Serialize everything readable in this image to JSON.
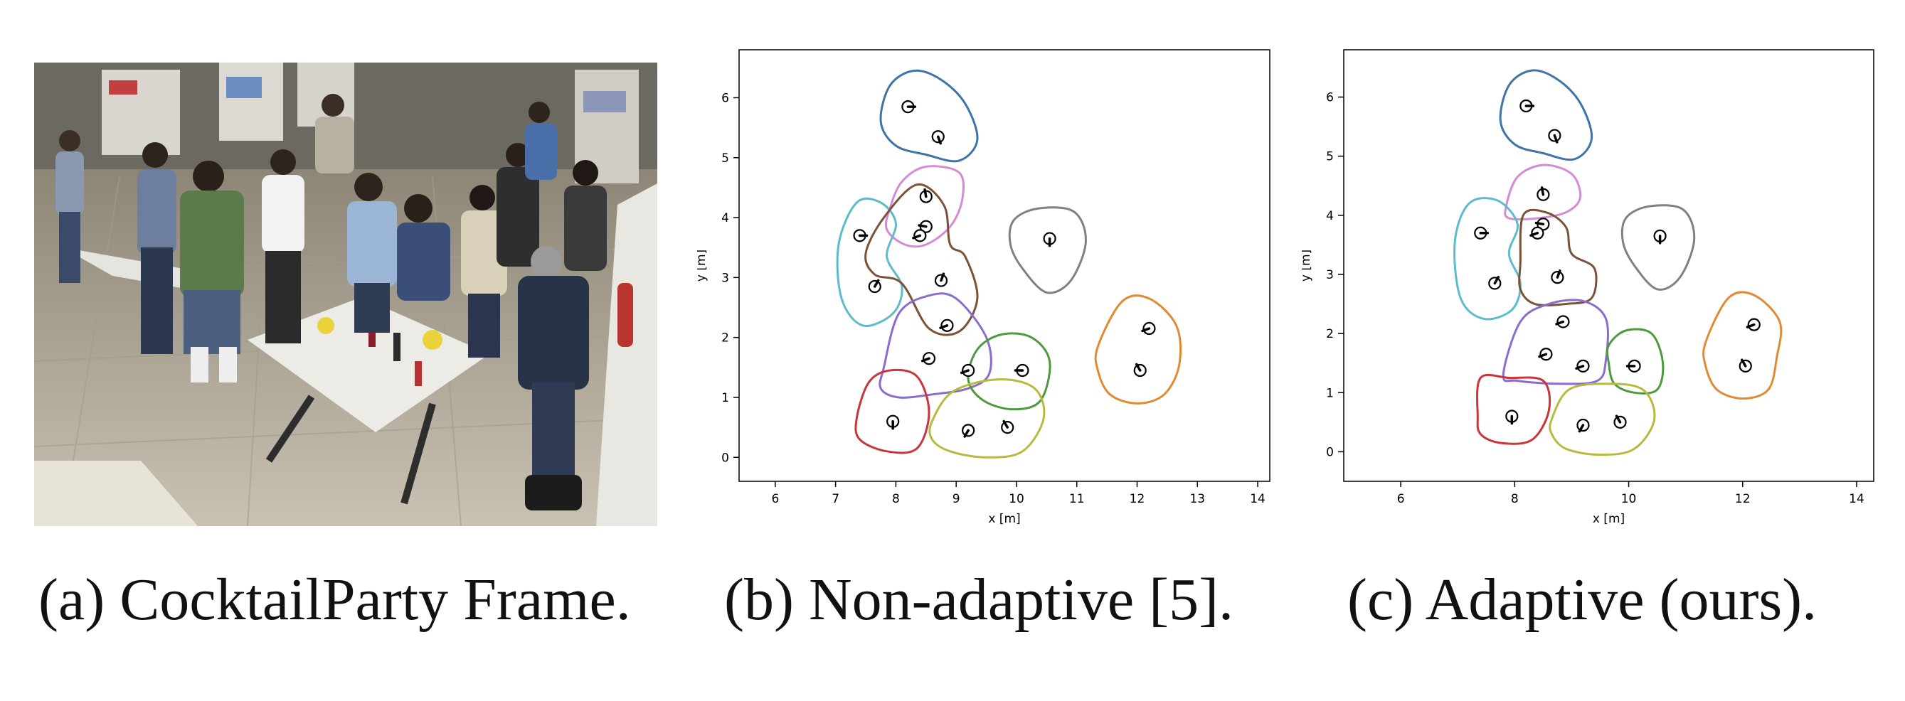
{
  "captions": {
    "a": "(a) CocktailParty Frame.",
    "b": "(b) Non-adaptive [5].",
    "c": "(c) Adaptive (ours)."
  },
  "photo": {
    "description_icon": "cocktail-party-photo"
  },
  "chart_data": [
    {
      "type": "scatter",
      "panel": "b",
      "xlabel": "x [m]",
      "ylabel": "y [m]",
      "xlim": [
        5.4,
        14.2
      ],
      "ylim": [
        -0.4,
        6.8
      ],
      "xticks": [
        6,
        7,
        8,
        9,
        10,
        11,
        12,
        13,
        14
      ],
      "yticks": [
        0,
        1,
        2,
        3,
        4,
        5,
        6
      ],
      "grid": false,
      "people": [
        {
          "x": 8.2,
          "y": 5.85,
          "dir": 0
        },
        {
          "x": 8.7,
          "y": 5.35,
          "dir": -70
        },
        {
          "x": 8.5,
          "y": 4.35,
          "dir": 100
        },
        {
          "x": 7.4,
          "y": 3.7,
          "dir": 0
        },
        {
          "x": 8.5,
          "y": 3.85,
          "dir": 170
        },
        {
          "x": 8.4,
          "y": 3.7,
          "dir": 200
        },
        {
          "x": 7.65,
          "y": 2.85,
          "dir": 60
        },
        {
          "x": 8.75,
          "y": 2.95,
          "dir": 70
        },
        {
          "x": 10.55,
          "y": 3.65,
          "dir": -90
        },
        {
          "x": 8.85,
          "y": 2.2,
          "dir": 200
        },
        {
          "x": 8.55,
          "y": 1.65,
          "dir": 200
        },
        {
          "x": 9.2,
          "y": 1.45,
          "dir": 200
        },
        {
          "x": 10.1,
          "y": 1.45,
          "dir": 180
        },
        {
          "x": 12.2,
          "y": 2.15,
          "dir": 200
        },
        {
          "x": 12.05,
          "y": 1.45,
          "dir": 120
        },
        {
          "x": 7.95,
          "y": 0.6,
          "dir": -90
        },
        {
          "x": 9.2,
          "y": 0.45,
          "dir": 240
        },
        {
          "x": 9.85,
          "y": 0.5,
          "dir": 120
        }
      ],
      "groups": [
        {
          "color": "#3f73a6",
          "outline": [
            [
              7.75,
              5.6
            ],
            [
              7.9,
              6.2
            ],
            [
              8.3,
              6.45
            ],
            [
              8.75,
              6.3
            ],
            [
              9.15,
              5.9
            ],
            [
              9.35,
              5.3
            ],
            [
              9.05,
              4.95
            ],
            [
              8.5,
              5.05
            ],
            [
              8.0,
              5.2
            ]
          ]
        },
        {
          "color": "#d48ad4",
          "outline": [
            [
              7.9,
              4.15
            ],
            [
              8.1,
              4.6
            ],
            [
              8.5,
              4.85
            ],
            [
              9.05,
              4.75
            ],
            [
              9.1,
              4.3
            ],
            [
              8.9,
              3.85
            ],
            [
              8.5,
              3.55
            ],
            [
              8.15,
              3.55
            ],
            [
              7.85,
              3.8
            ]
          ]
        },
        {
          "color": "#5cbcc9",
          "outline": [
            [
              7.05,
              3.55
            ],
            [
              7.35,
              4.25
            ],
            [
              7.75,
              4.25
            ],
            [
              8.0,
              3.9
            ],
            [
              7.85,
              3.35
            ],
            [
              8.1,
              2.85
            ],
            [
              7.95,
              2.4
            ],
            [
              7.45,
              2.2
            ],
            [
              7.1,
              2.65
            ]
          ]
        },
        {
          "color": "#7a5238",
          "outline": [
            [
              7.5,
              3.4
            ],
            [
              7.8,
              4.0
            ],
            [
              8.35,
              4.55
            ],
            [
              8.8,
              4.2
            ],
            [
              8.9,
              3.55
            ],
            [
              9.15,
              3.35
            ],
            [
              9.35,
              2.65
            ],
            [
              9.05,
              2.1
            ],
            [
              8.55,
              2.15
            ],
            [
              8.1,
              2.9
            ],
            [
              7.65,
              3.05
            ]
          ]
        },
        {
          "color": "#808080",
          "outline": [
            [
              9.95,
              3.95
            ],
            [
              10.35,
              4.15
            ],
            [
              10.95,
              4.1
            ],
            [
              11.15,
              3.6
            ],
            [
              10.9,
              2.95
            ],
            [
              10.5,
              2.75
            ],
            [
              10.1,
              3.15
            ],
            [
              9.9,
              3.55
            ]
          ]
        },
        {
          "color": "#8a6ccf",
          "outline": [
            [
              7.8,
              1.5
            ],
            [
              8.05,
              2.4
            ],
            [
              8.55,
              2.7
            ],
            [
              9.0,
              2.65
            ],
            [
              9.5,
              2.0
            ],
            [
              9.55,
              1.4
            ],
            [
              9.2,
              1.15
            ],
            [
              8.6,
              1.05
            ],
            [
              8.05,
              1.0
            ],
            [
              7.75,
              1.15
            ]
          ]
        },
        {
          "color": "#4c9a3e",
          "outline": [
            [
              9.35,
              1.8
            ],
            [
              9.75,
              2.05
            ],
            [
              10.25,
              2.0
            ],
            [
              10.55,
              1.6
            ],
            [
              10.4,
              0.95
            ],
            [
              9.95,
              0.8
            ],
            [
              9.45,
              0.95
            ],
            [
              9.2,
              1.3
            ]
          ]
        },
        {
          "color": "#e08a33",
          "outline": [
            [
              11.35,
              1.85
            ],
            [
              11.75,
              2.6
            ],
            [
              12.2,
              2.65
            ],
            [
              12.65,
              2.2
            ],
            [
              12.7,
              1.55
            ],
            [
              12.45,
              1.05
            ],
            [
              12.0,
              0.9
            ],
            [
              11.55,
              1.05
            ],
            [
              11.35,
              1.45
            ]
          ]
        },
        {
          "color": "#c8353a",
          "outline": [
            [
              7.35,
              0.65
            ],
            [
              7.55,
              1.25
            ],
            [
              7.9,
              1.45
            ],
            [
              8.35,
              1.35
            ],
            [
              8.55,
              0.75
            ],
            [
              8.35,
              0.15
            ],
            [
              7.85,
              0.1
            ],
            [
              7.4,
              0.3
            ]
          ]
        },
        {
          "color": "#b7ba3c",
          "outline": [
            [
              8.6,
              0.6
            ],
            [
              8.95,
              1.1
            ],
            [
              9.7,
              1.3
            ],
            [
              10.3,
              1.15
            ],
            [
              10.45,
              0.65
            ],
            [
              10.1,
              0.1
            ],
            [
              9.5,
              0.0
            ],
            [
              8.9,
              0.1
            ],
            [
              8.6,
              0.3
            ]
          ]
        }
      ]
    },
    {
      "type": "scatter",
      "panel": "c",
      "xlabel": "x [m]",
      "ylabel": "y [m]",
      "xlim": [
        5.0,
        14.3
      ],
      "ylim": [
        -0.5,
        6.8
      ],
      "xticks": [
        6,
        8,
        10,
        12,
        14
      ],
      "yticks": [
        0,
        1,
        2,
        3,
        4,
        5,
        6
      ],
      "grid": false,
      "people": [
        {
          "x": 8.2,
          "y": 5.85,
          "dir": 0
        },
        {
          "x": 8.7,
          "y": 5.35,
          "dir": -70
        },
        {
          "x": 8.5,
          "y": 4.35,
          "dir": 100
        },
        {
          "x": 7.4,
          "y": 3.7,
          "dir": 0
        },
        {
          "x": 8.5,
          "y": 3.85,
          "dir": 170
        },
        {
          "x": 8.4,
          "y": 3.7,
          "dir": 200
        },
        {
          "x": 7.65,
          "y": 2.85,
          "dir": 60
        },
        {
          "x": 8.75,
          "y": 2.95,
          "dir": 70
        },
        {
          "x": 10.55,
          "y": 3.65,
          "dir": -90
        },
        {
          "x": 8.85,
          "y": 2.2,
          "dir": 200
        },
        {
          "x": 8.55,
          "y": 1.65,
          "dir": 200
        },
        {
          "x": 9.2,
          "y": 1.45,
          "dir": 200
        },
        {
          "x": 10.1,
          "y": 1.45,
          "dir": 180
        },
        {
          "x": 12.2,
          "y": 2.15,
          "dir": 200
        },
        {
          "x": 12.05,
          "y": 1.45,
          "dir": 120
        },
        {
          "x": 7.95,
          "y": 0.6,
          "dir": -90
        },
        {
          "x": 9.2,
          "y": 0.45,
          "dir": 240
        },
        {
          "x": 9.85,
          "y": 0.5,
          "dir": 120
        }
      ],
      "groups": [
        {
          "color": "#3f73a6",
          "outline": [
            [
              7.75,
              5.6
            ],
            [
              7.9,
              6.2
            ],
            [
              8.3,
              6.45
            ],
            [
              8.75,
              6.3
            ],
            [
              9.15,
              5.9
            ],
            [
              9.35,
              5.3
            ],
            [
              9.05,
              4.95
            ],
            [
              8.5,
              5.05
            ],
            [
              8.0,
              5.2
            ]
          ]
        },
        {
          "color": "#d48ad4",
          "outline": [
            [
              7.85,
              4.15
            ],
            [
              8.05,
              4.65
            ],
            [
              8.5,
              4.85
            ],
            [
              9.0,
              4.7
            ],
            [
              9.15,
              4.3
            ],
            [
              8.9,
              4.05
            ],
            [
              8.4,
              3.95
            ],
            [
              7.9,
              3.95
            ]
          ]
        },
        {
          "color": "#5cbcc9",
          "outline": [
            [
              6.95,
              3.55
            ],
            [
              7.2,
              4.2
            ],
            [
              7.7,
              4.25
            ],
            [
              8.05,
              3.85
            ],
            [
              7.9,
              3.35
            ],
            [
              8.1,
              2.85
            ],
            [
              7.95,
              2.4
            ],
            [
              7.45,
              2.25
            ],
            [
              7.05,
              2.6
            ]
          ]
        },
        {
          "color": "#7a5238",
          "outline": [
            [
              8.1,
              3.2
            ],
            [
              8.15,
              4.0
            ],
            [
              8.55,
              4.05
            ],
            [
              8.9,
              3.8
            ],
            [
              9.0,
              3.35
            ],
            [
              9.4,
              3.1
            ],
            [
              9.35,
              2.6
            ],
            [
              8.9,
              2.5
            ],
            [
              8.35,
              2.5
            ],
            [
              8.1,
              2.75
            ]
          ]
        },
        {
          "color": "#808080",
          "outline": [
            [
              9.95,
              3.95
            ],
            [
              10.35,
              4.15
            ],
            [
              10.95,
              4.1
            ],
            [
              11.15,
              3.6
            ],
            [
              10.9,
              2.95
            ],
            [
              10.5,
              2.75
            ],
            [
              10.1,
              3.15
            ],
            [
              9.9,
              3.55
            ]
          ]
        },
        {
          "color": "#8a6ccf",
          "outline": [
            [
              7.8,
              1.3
            ],
            [
              8.1,
              2.2
            ],
            [
              8.6,
              2.5
            ],
            [
              9.2,
              2.55
            ],
            [
              9.6,
              2.25
            ],
            [
              9.6,
              1.55
            ],
            [
              9.45,
              1.2
            ],
            [
              8.8,
              1.15
            ],
            [
              8.05,
              1.2
            ]
          ]
        },
        {
          "color": "#4c9a3e",
          "outline": [
            [
              9.65,
              1.8
            ],
            [
              9.95,
              2.05
            ],
            [
              10.4,
              2.0
            ],
            [
              10.6,
              1.5
            ],
            [
              10.5,
              1.05
            ],
            [
              10.1,
              1.0
            ],
            [
              9.75,
              1.15
            ],
            [
              9.65,
              1.5
            ]
          ]
        },
        {
          "color": "#e08a33",
          "outline": [
            [
              11.35,
              1.85
            ],
            [
              11.75,
              2.6
            ],
            [
              12.2,
              2.65
            ],
            [
              12.65,
              2.2
            ],
            [
              12.6,
              1.6
            ],
            [
              12.45,
              1.05
            ],
            [
              12.0,
              0.9
            ],
            [
              11.55,
              1.05
            ],
            [
              11.35,
              1.45
            ]
          ]
        },
        {
          "color": "#c8353a",
          "outline": [
            [
              7.35,
              0.6
            ],
            [
              7.4,
              1.25
            ],
            [
              7.9,
              1.25
            ],
            [
              8.5,
              1.2
            ],
            [
              8.6,
              0.7
            ],
            [
              8.3,
              0.2
            ],
            [
              7.75,
              0.15
            ],
            [
              7.4,
              0.3
            ]
          ]
        },
        {
          "color": "#b7ba3c",
          "outline": [
            [
              8.65,
              0.55
            ],
            [
              8.95,
              1.05
            ],
            [
              9.6,
              1.15
            ],
            [
              10.25,
              1.05
            ],
            [
              10.45,
              0.55
            ],
            [
              10.1,
              0.05
            ],
            [
              9.5,
              -0.05
            ],
            [
              8.9,
              0.05
            ],
            [
              8.65,
              0.3
            ]
          ]
        }
      ]
    }
  ]
}
